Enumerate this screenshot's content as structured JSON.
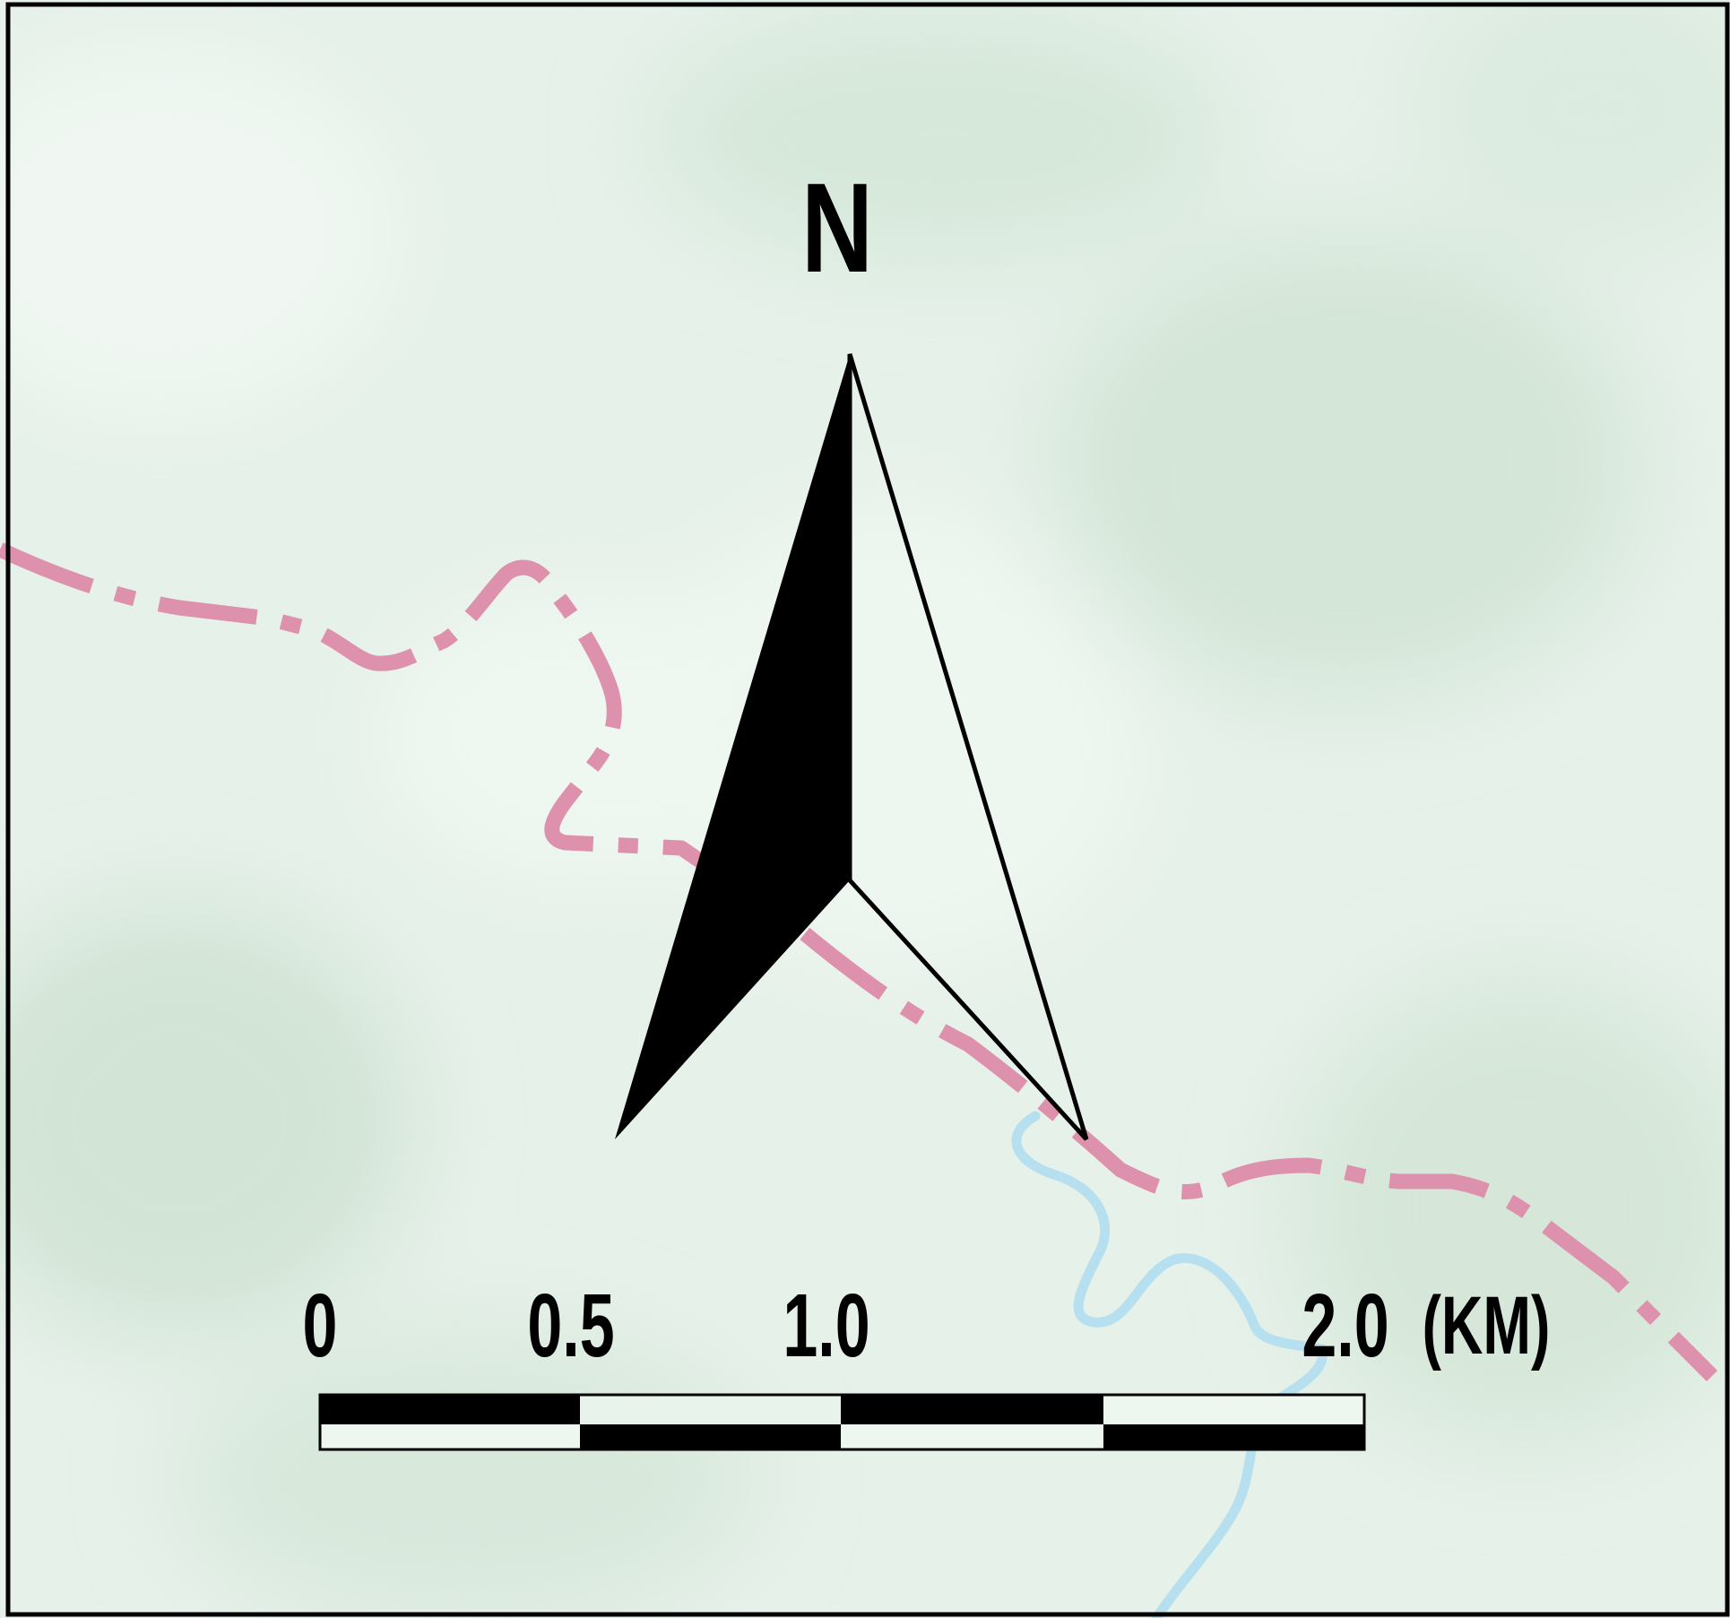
{
  "map": {
    "north_label": "N",
    "scale_bar": {
      "tick_labels": [
        "0",
        "0.5",
        "1.0",
        "2.0"
      ],
      "unit": "(KM)"
    },
    "colors": {
      "terrain_light": "#e9f3ec",
      "terrain_dark": "#d3e5d7",
      "boundary": "#dd91ad",
      "river": "#b6e0ef",
      "arrow": "#000000"
    }
  }
}
